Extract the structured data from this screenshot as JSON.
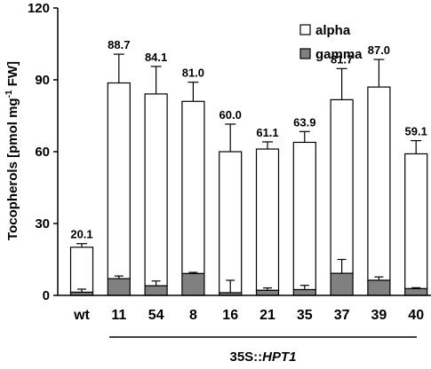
{
  "chart_data": {
    "type": "bar",
    "stacked": true,
    "categories": [
      "wt",
      "11",
      "54",
      "8",
      "16",
      "21",
      "35",
      "37",
      "39",
      "40"
    ],
    "series": [
      {
        "name": "alpha",
        "color": "#ffffff",
        "values": [
          18.8,
          81.7,
          80.1,
          71.9,
          58.9,
          59.0,
          61.5,
          72.5,
          80.7,
          56.3
        ]
      },
      {
        "name": "gamma",
        "color": "#808080",
        "values": [
          1.3,
          7.0,
          4.0,
          9.1,
          1.1,
          2.1,
          2.4,
          9.2,
          6.3,
          2.8
        ]
      }
    ],
    "totals": [
      "20.1",
      "88.7",
      "84.1",
      "81.0",
      "60.0",
      "61.1",
      "63.9",
      "81.7",
      "87.0",
      "59.1"
    ],
    "total_error": [
      1.5,
      12,
      11.5,
      8,
      11.5,
      3,
      4.5,
      13,
      11.5,
      5.5
    ],
    "gamma_error": [
      1.3,
      1.1,
      2.0,
      0.5,
      5.2,
      1.0,
      1.8,
      5.8,
      1.4,
      0.4
    ],
    "ylabel_main": "Tocopherols [pmol mg",
    "ylabel_sup": "-1",
    "ylabel_end": " FW]",
    "ylim": [
      0,
      120
    ],
    "yticks": [
      "0",
      "30",
      "60",
      "90",
      "120"
    ],
    "group_label_prefix": "35S::",
    "group_label_gene": "HPT1",
    "legend_position": "top-right",
    "grid": false
  }
}
